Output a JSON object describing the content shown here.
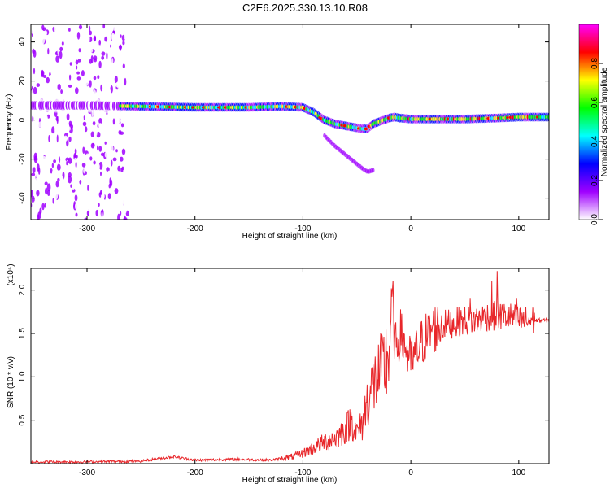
{
  "title": "C2E6.2025.330.13.10.R08",
  "chart_data": [
    {
      "type": "heatmap",
      "title": "C2E6.2025.330.13.10.R08",
      "xlabel": "Height of straight line (km)",
      "ylabel": "Frequency (Hz)",
      "xlim": [
        -352,
        128
      ],
      "ylim": [
        -51,
        49
      ],
      "xticks": [
        -300,
        -200,
        -100,
        0,
        100
      ],
      "xtick_labels": [
        "-300",
        "-200",
        "-100",
        "0",
        "100"
      ],
      "yticks": [
        -40,
        -20,
        0,
        20,
        40
      ],
      "ytick_labels": [
        "-40",
        "-20",
        "0",
        "20",
        "40"
      ],
      "colorbar": {
        "label": "Normalized spectral amplitude",
        "range": [
          0,
          1
        ],
        "ticks": [
          0.0,
          0.2,
          0.4,
          0.6,
          0.8
        ],
        "tick_labels": [
          "0.0",
          "0.2",
          "0.4",
          "0.6",
          "0.8"
        ],
        "colors": [
          "#ffffff",
          "#a000ff",
          "#0000ff",
          "#00ffff",
          "#00ff00",
          "#ffff00",
          "#ff0000",
          "#ff00ff"
        ]
      },
      "ridge": {
        "x": [
          -352,
          -300,
          -250,
          -200,
          -150,
          -120,
          -100,
          -90,
          -80,
          -70,
          -60,
          -50,
          -45,
          -40,
          -35,
          -30,
          -25,
          -20,
          -15,
          -10,
          0,
          20,
          50,
          80,
          100,
          128
        ],
        "y": [
          7.5,
          7.5,
          7,
          6.5,
          6.5,
          7,
          6.5,
          4,
          0,
          -2,
          -3,
          -4,
          -4.5,
          -4.5,
          -2,
          -1,
          0,
          1,
          1.5,
          1,
          0.5,
          0.5,
          0.5,
          1,
          1.5,
          1.5
        ]
      }
    },
    {
      "type": "line",
      "xlabel": "Height of straight line (km)",
      "ylabel": "SNR (10 * v/v)",
      "y_scale_label": "(x10⁴)",
      "xlim": [
        -352,
        128
      ],
      "ylim": [
        0,
        2.25
      ],
      "xticks": [
        -300,
        -200,
        -100,
        0,
        100
      ],
      "xtick_labels": [
        "-300",
        "-200",
        "-100",
        "0",
        "100"
      ],
      "yticks": [
        0.5,
        1.0,
        1.5,
        2.0
      ],
      "ytick_labels": [
        "0.5",
        "1.0",
        "1.5",
        "2.0"
      ],
      "series": [
        {
          "name": "SNR",
          "color": "#e8262a",
          "x": [
            -352,
            -300,
            -250,
            -220,
            -200,
            -160,
            -130,
            -110,
            -100,
            -90,
            -80,
            -70,
            -60,
            -55,
            -50,
            -45,
            -40,
            -35,
            -30,
            -25,
            -20,
            -17,
            -15,
            -10,
            -5,
            0,
            10,
            20,
            30,
            40,
            50,
            60,
            70,
            80,
            90,
            100,
            110,
            120,
            128
          ],
          "y": [
            0.02,
            0.02,
            0.03,
            0.08,
            0.04,
            0.05,
            0.04,
            0.08,
            0.12,
            0.18,
            0.25,
            0.3,
            0.4,
            0.5,
            0.35,
            0.45,
            0.75,
            0.9,
            1.0,
            1.1,
            1.3,
            2.0,
            1.3,
            1.5,
            1.35,
            1.15,
            1.4,
            1.55,
            1.6,
            1.62,
            1.65,
            1.65,
            1.7,
            1.7,
            1.7,
            1.65,
            1.65,
            1.65,
            1.65
          ],
          "spikes": [
            {
              "x": -55,
              "y": 0.5
            },
            {
              "x": -17,
              "y": 2.02
            },
            {
              "x": 55,
              "y": 1.9
            },
            {
              "x": 75,
              "y": 2.1
            },
            {
              "x": 80,
              "y": 2.22
            },
            {
              "x": 98,
              "y": 1.9
            }
          ]
        }
      ]
    }
  ]
}
